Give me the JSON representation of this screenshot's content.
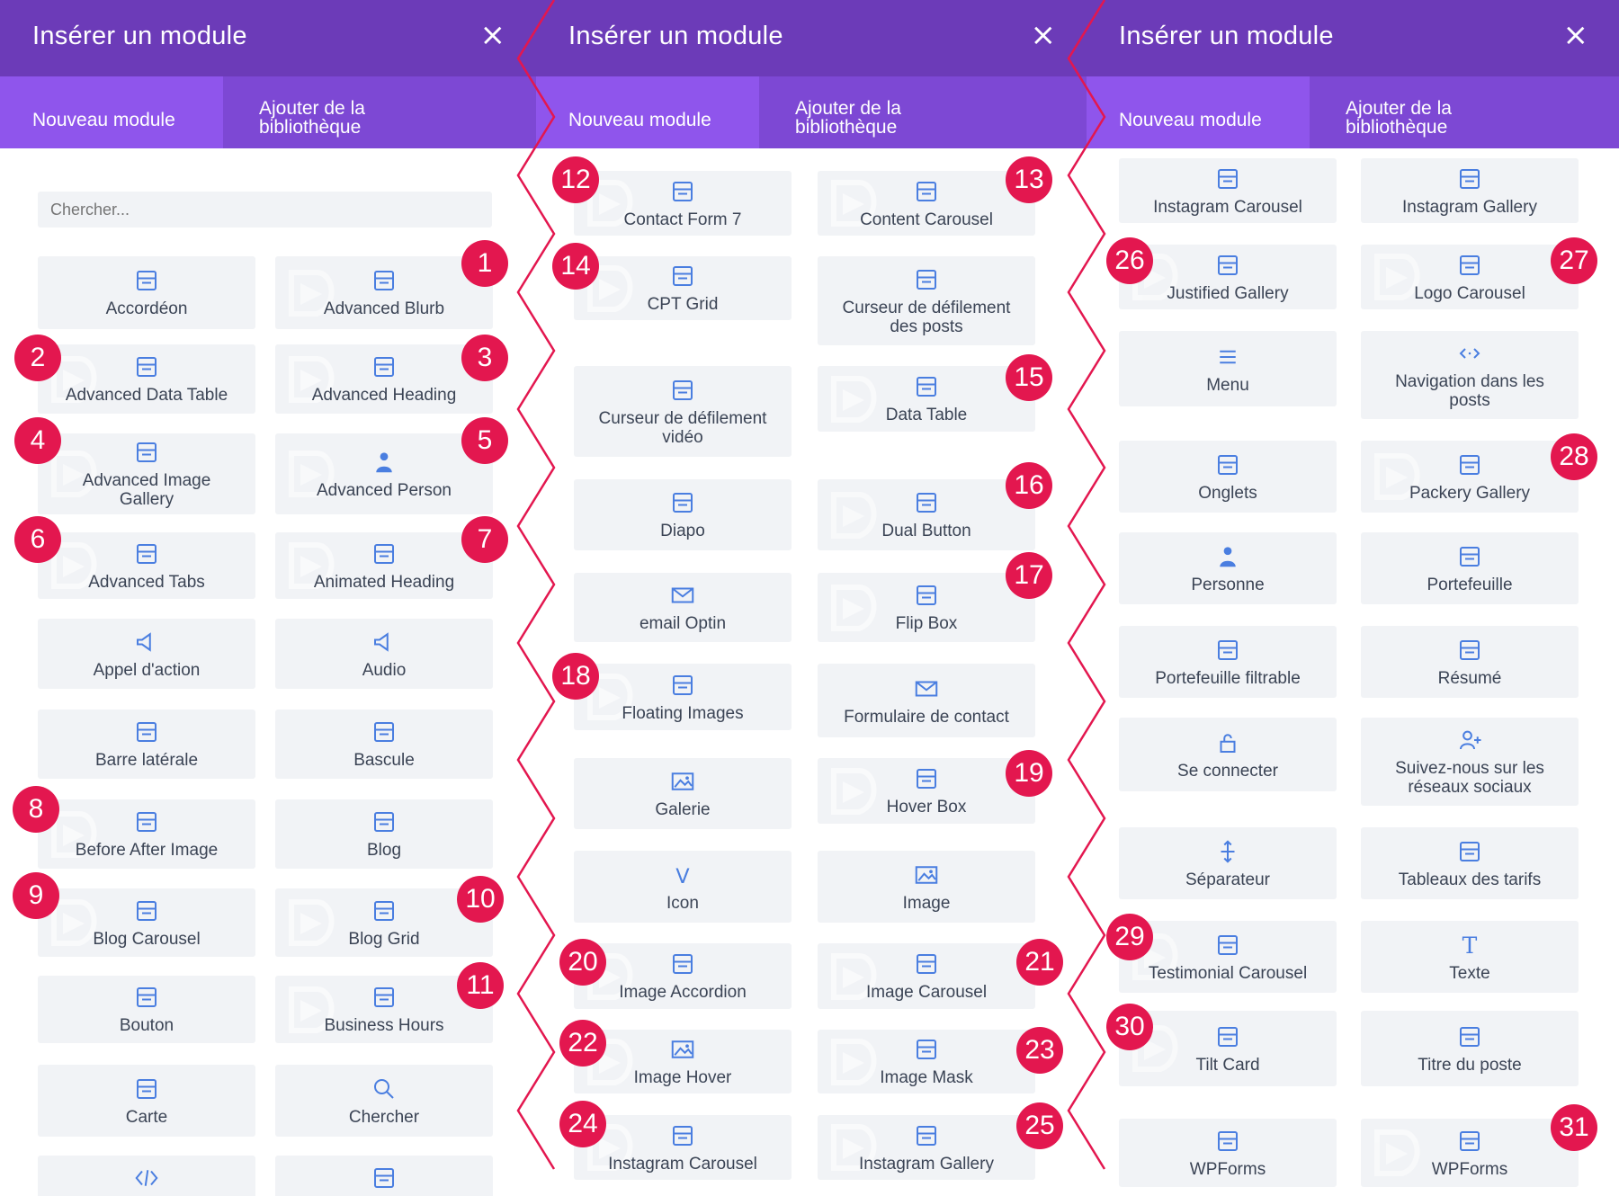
{
  "colors": {
    "header": "#6c3bb8",
    "tabs": "#7d48d4",
    "active_tab": "#8f55ec",
    "tile": "#f1f3f6",
    "icon": "#4a7ee0",
    "badge": "#e3174f",
    "label": "#3b4455"
  },
  "panels": [
    {
      "title": "Insérer un module",
      "close": "×",
      "tab_new": "Nouveau module",
      "tab_lib_1": "Ajouter de la",
      "tab_lib_2": "bibliothèque",
      "search_placeholder": "Chercher...",
      "tiles": [
        {
          "l1": "Accordéon",
          "icon": "accordion-icon"
        },
        {
          "l1": "Advanced Blurb",
          "icon": "blurb-icon",
          "badge": "1"
        },
        {
          "l1": "Advanced Data Table",
          "icon": "data-table-icon",
          "badge": "2"
        },
        {
          "l1": "Advanced Heading",
          "icon": "heading-icon",
          "badge": "3"
        },
        {
          "l1": "Advanced Image",
          "l2": "Gallery",
          "icon": "gallery-icon",
          "badge": "4"
        },
        {
          "l1": "Advanced Person",
          "icon": "person-icon",
          "badge": "5"
        },
        {
          "l1": "Advanced Tabs",
          "icon": "tabs-icon",
          "badge": "6"
        },
        {
          "l1": "Animated Heading",
          "icon": "animated-heading-icon",
          "badge": "7"
        },
        {
          "l1": "Appel d'action",
          "icon": "megaphone-icon"
        },
        {
          "l1": "Audio",
          "icon": "audio-icon"
        },
        {
          "l1": "Barre latérale",
          "icon": "sidebar-icon"
        },
        {
          "l1": "Bascule",
          "icon": "toggle-icon"
        },
        {
          "l1": "Before After Image",
          "icon": "before-after-icon",
          "badge": "8"
        },
        {
          "l1": "Blog",
          "icon": "blog-icon"
        },
        {
          "l1": "Blog Carousel",
          "icon": "carousel-icon",
          "badge": "9"
        },
        {
          "l1": "Blog Grid",
          "icon": "grid-icon",
          "badge": "10"
        },
        {
          "l1": "Bouton",
          "icon": "button-icon"
        },
        {
          "l1": "Business Hours",
          "icon": "clock-icon",
          "badge": "11"
        },
        {
          "l1": "Carte",
          "icon": "map-icon"
        },
        {
          "l1": "Chercher",
          "icon": "search-icon"
        },
        {
          "l1": "",
          "icon": "code-icon"
        },
        {
          "l1": "",
          "icon": "comment-icon"
        }
      ]
    },
    {
      "title": "Insérer un module",
      "close": "×",
      "tab_new": "Nouveau module",
      "tab_lib_1": "Ajouter de la",
      "tab_lib_2": "bibliothèque",
      "tiles": [
        {
          "l1": "Contact Form 7",
          "icon": "form-icon",
          "badge": "12"
        },
        {
          "l1": "Content Carousel",
          "icon": "content-carousel-icon",
          "badge": "13"
        },
        {
          "l1": "CPT Grid",
          "icon": "cpt-grid-icon",
          "badge": "14"
        },
        {
          "l1": "Curseur de défilement",
          "l2": "des posts",
          "icon": "post-slider-icon"
        },
        {
          "l1": "Curseur de défilement",
          "l2": "vidéo",
          "icon": "video-slider-icon"
        },
        {
          "l1": "Data Table",
          "icon": "data-table-icon",
          "badge": "15"
        },
        {
          "l1": "Diapo",
          "icon": "slider-icon"
        },
        {
          "l1": "Dual Button",
          "icon": "dual-button-icon",
          "badge": "16"
        },
        {
          "l1": "email Optin",
          "icon": "email-icon"
        },
        {
          "l1": "Flip Box",
          "icon": "flip-box-icon",
          "badge": "17"
        },
        {
          "l1": "Floating Images",
          "icon": "floating-images-icon",
          "badge": "18"
        },
        {
          "l1": "Formulaire de contact",
          "icon": "contact-form-icon"
        },
        {
          "l1": "Galerie",
          "icon": "image-gallery-icon"
        },
        {
          "l1": "Hover Box",
          "icon": "hover-box-icon",
          "badge": "19"
        },
        {
          "l1": "Icon",
          "icon": "v-icon"
        },
        {
          "l1": "Image",
          "icon": "image-icon"
        },
        {
          "l1": "Image Accordion",
          "icon": "image-accordion-icon",
          "badge": "20"
        },
        {
          "l1": "Image Carousel",
          "icon": "image-carousel-icon",
          "badge": "21"
        },
        {
          "l1": "Image Hover",
          "icon": "image-hover-icon",
          "badge": "22"
        },
        {
          "l1": "Image Mask",
          "icon": "image-mask-icon",
          "badge": "23"
        },
        {
          "l1": "Instagram Carousel",
          "icon": "instagram-carousel-icon",
          "badge": "24"
        },
        {
          "l1": "Instagram Gallery",
          "icon": "instagram-gallery-icon",
          "badge": "25"
        }
      ]
    },
    {
      "title": "Insérer un module",
      "close": "×",
      "tab_new": "Nouveau module",
      "tab_lib_1": "Ajouter de la",
      "tab_lib_2": "bibliothèque",
      "tiles": [
        {
          "l1": "Instagram Carousel",
          "icon": "instagram-carousel-icon"
        },
        {
          "l1": "Instagram Gallery",
          "icon": "instagram-gallery-icon"
        },
        {
          "l1": "Justified Gallery",
          "icon": "justified-gallery-icon",
          "badge": "26"
        },
        {
          "l1": "Logo Carousel",
          "icon": "logo-carousel-icon",
          "badge": "27"
        },
        {
          "l1": "Menu",
          "icon": "menu-icon"
        },
        {
          "l1": "Navigation dans les",
          "l2": "posts",
          "icon": "navigation-icon"
        },
        {
          "l1": "Onglets",
          "icon": "tabs-icon"
        },
        {
          "l1": "Packery Gallery",
          "icon": "packery-icon",
          "badge": "28"
        },
        {
          "l1": "Personne",
          "icon": "person-icon"
        },
        {
          "l1": "Portefeuille",
          "icon": "portfolio-icon"
        },
        {
          "l1": "Portefeuille filtrable",
          "icon": "filterable-portfolio-icon"
        },
        {
          "l1": "Résumé",
          "icon": "summary-icon"
        },
        {
          "l1": "Se connecter",
          "icon": "lock-icon"
        },
        {
          "l1": "Suivez-nous sur les",
          "l2": "réseaux sociaux",
          "icon": "social-follow-icon"
        },
        {
          "l1": "Séparateur",
          "icon": "divider-icon"
        },
        {
          "l1": "Tableaux des tarifs",
          "icon": "pricing-icon"
        },
        {
          "l1": "Testimonial Carousel",
          "icon": "testimonial-icon",
          "badge": "29"
        },
        {
          "l1": "Texte",
          "icon": "text-icon"
        },
        {
          "l1": "Tilt Card",
          "icon": "tilt-card-icon",
          "badge": "30"
        },
        {
          "l1": "Titre du poste",
          "icon": "post-title-icon"
        },
        {
          "l1": "WPForms",
          "icon": "wpforms-icon"
        },
        {
          "l1": "WPForms",
          "icon": "wpforms-icon",
          "badge": "31"
        }
      ]
    }
  ]
}
